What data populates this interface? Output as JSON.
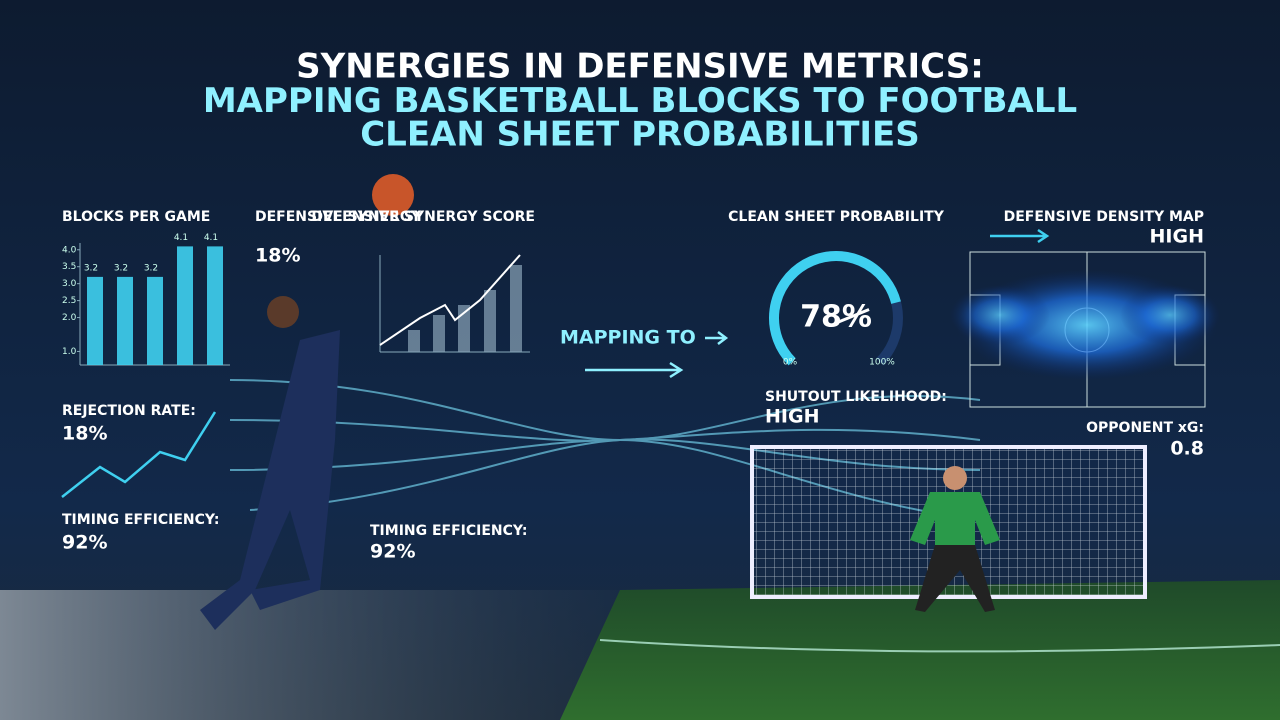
{
  "header": {
    "title_line1": "SYNERGIES IN DEFENSIVE METRICS:",
    "title_line2_a": "MAPPING BASKETBALL",
    "title_line2_b": "BLOCKS TO FOOTBALL",
    "title_line3": "CLEAN SHEET PROBABILITIES"
  },
  "chart_data": {
    "type": "bar",
    "title": "BLOCKS PER GAME",
    "categories": [
      null,
      null,
      null,
      null,
      null
    ],
    "values": [
      3.2,
      3.2,
      3.2,
      4.1,
      4.1
    ],
    "value_labels": [
      "3.2",
      "3.2",
      "3.2",
      "4.1",
      "4.1"
    ],
    "color": "#3fd0f0",
    "ylim": [
      0.6,
      4.2
    ],
    "yticks": [
      {
        "value": 1,
        "label": "1.0"
      },
      {
        "value": 2,
        "label": "2.0"
      },
      {
        "value": 2.5,
        "label": "2.5"
      },
      {
        "value": 3,
        "label": "3.0"
      },
      {
        "value": 3.5,
        "label": "3.5"
      },
      {
        "value": 4,
        "label": "4.0"
      }
    ]
  },
  "basketball": {
    "synergy_label": "DEFENSIVE SYNERGY",
    "synergy_value": "18%",
    "score_title": "DEFENSIVE SYNERGY SCORE",
    "rejection_label": "REJECTION RATE:",
    "rejection_value": "18%",
    "timing_label": "TIMING EFFICIENCY:",
    "timing_value": "92%",
    "timing2_label": "TIMING EFFICIENCY:",
    "timing2_value": "92%"
  },
  "mapping": "MAPPING TO",
  "gauge": {
    "title": "CLEAN SHEET PROBABILITY",
    "value": 78,
    "label": "78%",
    "min_label": "0%",
    "max_label": "100%"
  },
  "football": {
    "density_title": "DEFENSIVE DENSITY MAP",
    "density_value": "HIGH",
    "shutout_label": "SHUTOUT LIKELIHOOD:",
    "shutout_value": "HIGH",
    "xg_label": "OPPONENT xG:",
    "xg_value": "0.8"
  }
}
